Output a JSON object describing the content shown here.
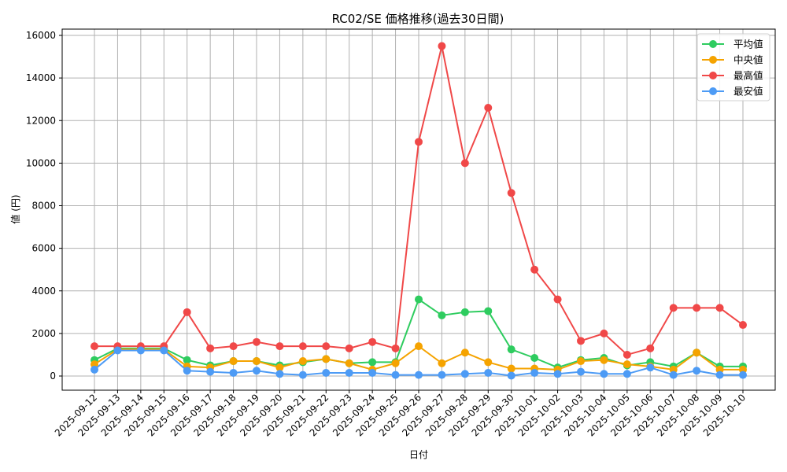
{
  "chart_data": {
    "type": "line",
    "title": "RC02/SE 価格推移(過去30日間)",
    "xlabel": "日付",
    "ylabel": "値 (円)",
    "ylim": [
      -700,
      16300
    ],
    "yticks": [
      0,
      2000,
      4000,
      6000,
      8000,
      10000,
      12000,
      14000,
      16000
    ],
    "grid": true,
    "legend_position": "upper right",
    "categories": [
      "2025-09-12",
      "2025-09-13",
      "2025-09-14",
      "2025-09-15",
      "2025-09-16",
      "2025-09-17",
      "2025-09-18",
      "2025-09-19",
      "2025-09-20",
      "2025-09-21",
      "2025-09-22",
      "2025-09-23",
      "2025-09-24",
      "2025-09-25",
      "2025-09-26",
      "2025-09-27",
      "2025-09-28",
      "2025-09-29",
      "2025-09-30",
      "2025-10-01",
      "2025-10-02",
      "2025-10-03",
      "2025-10-04",
      "2025-10-05",
      "2025-10-06",
      "2025-10-07",
      "2025-10-08",
      "2025-10-09",
      "2025-10-10"
    ],
    "series": [
      {
        "name": "平均値",
        "color": "#2ecc5f",
        "values": [
          750,
          1300,
          1300,
          1300,
          750,
          500,
          700,
          700,
          500,
          650,
          800,
          600,
          650,
          650,
          3600,
          2850,
          3000,
          3050,
          1250,
          850,
          400,
          750,
          850,
          500,
          650,
          450,
          1100,
          450,
          450
        ]
      },
      {
        "name": "中央値",
        "color": "#f5a300",
        "values": [
          550,
          1250,
          1250,
          1250,
          450,
          400,
          700,
          700,
          400,
          700,
          800,
          600,
          300,
          600,
          1400,
          600,
          1100,
          650,
          350,
          350,
          300,
          700,
          750,
          550,
          450,
          300,
          1100,
          300,
          300
        ]
      },
      {
        "name": "最高値",
        "color": "#f04848",
        "values": [
          1400,
          1400,
          1400,
          1400,
          3000,
          1300,
          1400,
          1600,
          1400,
          1400,
          1400,
          1300,
          1600,
          1300,
          11000,
          15500,
          10000,
          12600,
          8600,
          5000,
          3600,
          1650,
          2000,
          1000,
          1300,
          3200,
          3200,
          3200,
          2400
        ]
      },
      {
        "name": "最安値",
        "color": "#4d9bf5",
        "values": [
          300,
          1200,
          1200,
          1200,
          250,
          200,
          150,
          250,
          100,
          50,
          150,
          150,
          150,
          50,
          50,
          50,
          100,
          150,
          20,
          150,
          100,
          200,
          100,
          100,
          400,
          50,
          250,
          50,
          50
        ]
      }
    ]
  }
}
